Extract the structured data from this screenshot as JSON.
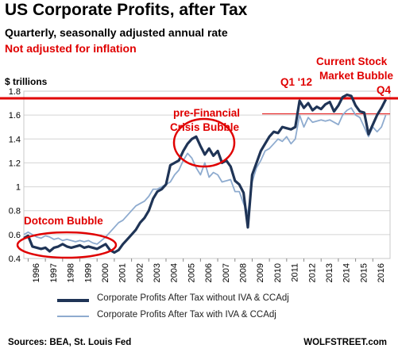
{
  "chart_data": {
    "type": "line",
    "title": "US Corporate Profits, after Tax",
    "subtitle": "Quarterly, seasonally adjusted annual rate",
    "note": "Not adjusted for inflation",
    "ylabel": "$ trillions",
    "ylim": [
      0.4,
      1.8
    ],
    "yticks": [
      0.4,
      0.6,
      0.8,
      1.0,
      1.2,
      1.4,
      1.6,
      1.8
    ],
    "ytick_labels": [
      "0.4",
      "0.6",
      "0.8",
      "1",
      "1.2",
      "1.4",
      "1.6",
      "1.8"
    ],
    "xlim": [
      1995.75,
      2017.0
    ],
    "xtick_labels": [
      "1996",
      "1997",
      "1998",
      "1999",
      "2000",
      "2001",
      "2002",
      "2003",
      "2004",
      "2005",
      "2006",
      "2007",
      "2008",
      "2009",
      "2010",
      "2011",
      "2012",
      "2013",
      "2014",
      "2015",
      "2016"
    ],
    "grid": "horizontal",
    "reference_line": {
      "value": 1.74,
      "color": "#e00000"
    },
    "series": [
      {
        "name": "Corporate Profits After Tax without IVA & CCAdj",
        "color": "#1f3456",
        "x": [
          1995.75,
          1996.0,
          1996.25,
          1996.5,
          1996.75,
          1997.0,
          1997.25,
          1997.5,
          1997.75,
          1998.0,
          1998.25,
          1998.5,
          1998.75,
          1999.0,
          1999.25,
          1999.5,
          1999.75,
          2000.0,
          2000.25,
          2000.5,
          2000.75,
          2001.0,
          2001.25,
          2001.5,
          2001.75,
          2002.0,
          2002.25,
          2002.5,
          2002.75,
          2003.0,
          2003.25,
          2003.5,
          2003.75,
          2004.0,
          2004.25,
          2004.5,
          2004.75,
          2005.0,
          2005.25,
          2005.5,
          2005.75,
          2006.0,
          2006.25,
          2006.5,
          2006.75,
          2007.0,
          2007.25,
          2007.5,
          2007.75,
          2008.0,
          2008.25,
          2008.5,
          2008.75,
          2009.0,
          2009.25,
          2009.5,
          2009.75,
          2010.0,
          2010.25,
          2010.5,
          2010.75,
          2011.0,
          2011.25,
          2011.5,
          2011.75,
          2012.0,
          2012.25,
          2012.5,
          2012.75,
          2013.0,
          2013.25,
          2013.5,
          2013.75,
          2014.0,
          2014.25,
          2014.5,
          2014.75,
          2015.0,
          2015.25,
          2015.5,
          2015.75,
          2016.0,
          2016.25,
          2016.5,
          2016.75
        ],
        "values": [
          0.57,
          0.59,
          0.5,
          0.49,
          0.48,
          0.49,
          0.46,
          0.49,
          0.5,
          0.52,
          0.5,
          0.49,
          0.5,
          0.51,
          0.49,
          0.5,
          0.49,
          0.48,
          0.5,
          0.52,
          0.47,
          0.45,
          0.47,
          0.52,
          0.56,
          0.6,
          0.64,
          0.7,
          0.74,
          0.8,
          0.9,
          0.96,
          0.98,
          1.02,
          1.18,
          1.2,
          1.22,
          1.3,
          1.36,
          1.4,
          1.42,
          1.34,
          1.27,
          1.32,
          1.26,
          1.3,
          1.2,
          1.22,
          1.17,
          1.05,
          1.02,
          0.95,
          0.66,
          1.1,
          1.2,
          1.3,
          1.36,
          1.42,
          1.46,
          1.45,
          1.5,
          1.49,
          1.48,
          1.5,
          1.72,
          1.66,
          1.7,
          1.64,
          1.67,
          1.65,
          1.69,
          1.71,
          1.63,
          1.68,
          1.75,
          1.77,
          1.76,
          1.68,
          1.63,
          1.62,
          1.44,
          1.52,
          1.6,
          1.66,
          1.73
        ]
      },
      {
        "name": "Corporate Profits After Tax with IVA & CCAdj",
        "color": "#8eabcf",
        "x": [
          1995.75,
          1996.0,
          1996.25,
          1996.5,
          1996.75,
          1997.0,
          1997.25,
          1997.5,
          1997.75,
          1998.0,
          1998.25,
          1998.5,
          1998.75,
          1999.0,
          1999.25,
          1999.5,
          1999.75,
          2000.0,
          2000.25,
          2000.5,
          2000.75,
          2001.0,
          2001.25,
          2001.5,
          2001.75,
          2002.0,
          2002.25,
          2002.5,
          2002.75,
          2003.0,
          2003.25,
          2003.5,
          2003.75,
          2004.0,
          2004.25,
          2004.5,
          2004.75,
          2005.0,
          2005.25,
          2005.5,
          2005.75,
          2006.0,
          2006.25,
          2006.5,
          2006.75,
          2007.0,
          2007.25,
          2007.5,
          2007.75,
          2008.0,
          2008.25,
          2008.5,
          2008.75,
          2009.0,
          2009.25,
          2009.5,
          2009.75,
          2010.0,
          2010.25,
          2010.5,
          2010.75,
          2011.0,
          2011.25,
          2011.5,
          2011.75,
          2012.0,
          2012.25,
          2012.5,
          2012.75,
          2013.0,
          2013.25,
          2013.5,
          2013.75,
          2014.0,
          2014.25,
          2014.5,
          2014.75,
          2015.0,
          2015.25,
          2015.5,
          2015.75,
          2016.0,
          2016.25,
          2016.5,
          2016.75
        ],
        "values": [
          0.6,
          0.62,
          0.6,
          0.58,
          0.57,
          0.59,
          0.58,
          0.56,
          0.57,
          0.55,
          0.56,
          0.55,
          0.54,
          0.55,
          0.54,
          0.55,
          0.53,
          0.52,
          0.55,
          0.58,
          0.62,
          0.66,
          0.7,
          0.72,
          0.76,
          0.8,
          0.84,
          0.86,
          0.88,
          0.92,
          0.98,
          0.98,
          1.0,
          1.02,
          1.04,
          1.1,
          1.14,
          1.22,
          1.28,
          1.24,
          1.16,
          1.1,
          1.2,
          1.08,
          1.12,
          1.1,
          1.04,
          1.05,
          1.06,
          0.96,
          0.96,
          0.86,
          0.78,
          1.04,
          1.16,
          1.22,
          1.3,
          1.32,
          1.36,
          1.4,
          1.38,
          1.42,
          1.36,
          1.4,
          1.6,
          1.5,
          1.58,
          1.54,
          1.55,
          1.56,
          1.55,
          1.56,
          1.54,
          1.52,
          1.6,
          1.64,
          1.66,
          1.6,
          1.58,
          1.5,
          1.42,
          1.5,
          1.46,
          1.5,
          1.6
        ]
      }
    ],
    "annotations": [
      {
        "text": "Dotcom Bubble",
        "color": "#e00000"
      },
      {
        "text": "pre-Financial",
        "color": "#e00000"
      },
      {
        "text": "Crisis Bubble",
        "color": "#e00000"
      },
      {
        "text": "Q1 '12",
        "color": "#e00000"
      },
      {
        "text": "Current Stock",
        "color": "#e00000"
      },
      {
        "text": "Market Bubble",
        "color": "#e00000"
      },
      {
        "text": "Q4",
        "color": "#e00000"
      }
    ]
  },
  "source": "Sources: BEA, St. Louis Fed",
  "brand": "WOLFSTREET.com"
}
